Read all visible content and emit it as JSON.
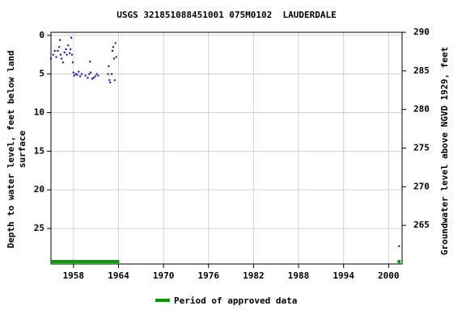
{
  "chart_data": {
    "type": "scatter",
    "title": "USGS 321851088451001 075M0102  LAUDERDALE",
    "ylabel": [
      "Depth to water level, feet below land",
      "surface"
    ],
    "y2label": "Groundwater level above NGVD 1929, feet",
    "xlim": [
      1955,
      2001.8
    ],
    "xticks": [
      1958,
      1964,
      1970,
      1976,
      1982,
      1988,
      1994,
      2000
    ],
    "ylim": [
      -0.4,
      29.6
    ],
    "yticks": [
      0,
      5,
      10,
      15,
      20,
      25
    ],
    "y2lim": [
      290,
      260
    ],
    "y2ticks": [
      290,
      285,
      280,
      275,
      270,
      265
    ],
    "grid": true,
    "series": [
      {
        "color": "#0000cc",
        "x": [
          1955.0,
          1955.3,
          1955.5,
          1955.7,
          1955.9,
          1956.1,
          1956.2,
          1956.3,
          1956.4,
          1956.6,
          1956.8,
          1957.0,
          1957.1,
          1957.3,
          1957.5,
          1957.6,
          1957.7,
          1957.8,
          1957.9,
          1958.0,
          1958.1,
          1958.3,
          1958.5,
          1958.7,
          1958.9,
          1959.1,
          1959.6,
          1959.9,
          1960.1,
          1960.2,
          1960.3,
          1960.5,
          1960.7,
          1960.9,
          1961.1,
          1961.3,
          1962.6,
          1962.7,
          1962.8,
          1962.9,
          1963.1,
          1963.2,
          1963.3,
          1963.4,
          1963.5,
          1963.6,
          1963.7,
          2001.4
        ],
        "values": [
          3.0,
          2.5,
          2.0,
          2.8,
          2.0,
          1.5,
          0.6,
          2.5,
          3.0,
          3.5,
          2.2,
          1.8,
          2.5,
          1.3,
          2.3,
          1.8,
          0.3,
          2.5,
          3.5,
          4.8,
          5.2,
          5.0,
          5.1,
          4.7,
          5.3,
          5.0,
          5.2,
          5.5,
          5.0,
          3.4,
          4.8,
          5.6,
          5.5,
          5.3,
          5.0,
          5.2,
          5.0,
          4.0,
          5.8,
          6.1,
          5.0,
          2.0,
          1.5,
          3.0,
          5.8,
          1.0,
          2.8,
          27.3
        ]
      }
    ],
    "approved": {
      "name": "Period of approved data",
      "color": "#00a000",
      "periods": [
        [
          1955,
          1964.1
        ],
        [
          2001.2,
          2001.6
        ]
      ]
    }
  }
}
